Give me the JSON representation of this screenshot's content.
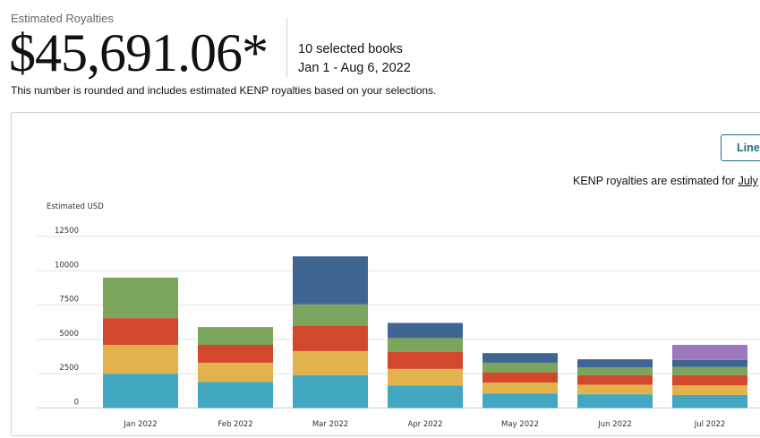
{
  "header": {
    "label": "Estimated Royalties",
    "amount": "$45,691.06*",
    "selected_books": "10 selected books",
    "date_range": "Jan 1 - Aug 6, 2022",
    "note": "This number is rounded and includes estimated KENP royalties based on your selections."
  },
  "controls": {
    "line_button_label": "Line",
    "kenp_note_prefix": "KENP royalties are estimated for ",
    "kenp_note_link": "July"
  },
  "colors": {
    "teal": "#42a7c1",
    "yellow": "#e2b34c",
    "red": "#d1482d",
    "green": "#7ba45d",
    "blue": "#3f6693",
    "purple": "#9d79bb",
    "grid": "#e3e3e3"
  },
  "chart_data": {
    "type": "bar",
    "stacked": true,
    "ylabel": "Estimated USD",
    "ylim": [
      0,
      12500
    ],
    "yticks": [
      0,
      2500,
      5000,
      7500,
      10000,
      12500
    ],
    "grid": true,
    "categories": [
      "Jan 2022",
      "Feb 2022",
      "Mar 2022",
      "Apr 2022",
      "May 2022",
      "Jun 2022",
      "Jul 2022"
    ],
    "series": [
      {
        "color": "#42a7c1",
        "values": [
          2500,
          1900,
          2400,
          1650,
          1050,
          1000,
          950
        ]
      },
      {
        "color": "#e2b34c",
        "values": [
          2100,
          1400,
          1750,
          1200,
          800,
          700,
          700
        ]
      },
      {
        "color": "#d1482d",
        "values": [
          1950,
          1300,
          1850,
          1250,
          750,
          700,
          750
        ]
      },
      {
        "color": "#7ba45d",
        "values": [
          2950,
          1300,
          1550,
          1000,
          700,
          550,
          600
        ]
      },
      {
        "color": "#3f6693",
        "values": [
          0,
          0,
          3500,
          1100,
          700,
          600,
          500
        ]
      },
      {
        "color": "#9d79bb",
        "values": [
          0,
          0,
          0,
          0,
          0,
          0,
          1100
        ]
      }
    ]
  }
}
